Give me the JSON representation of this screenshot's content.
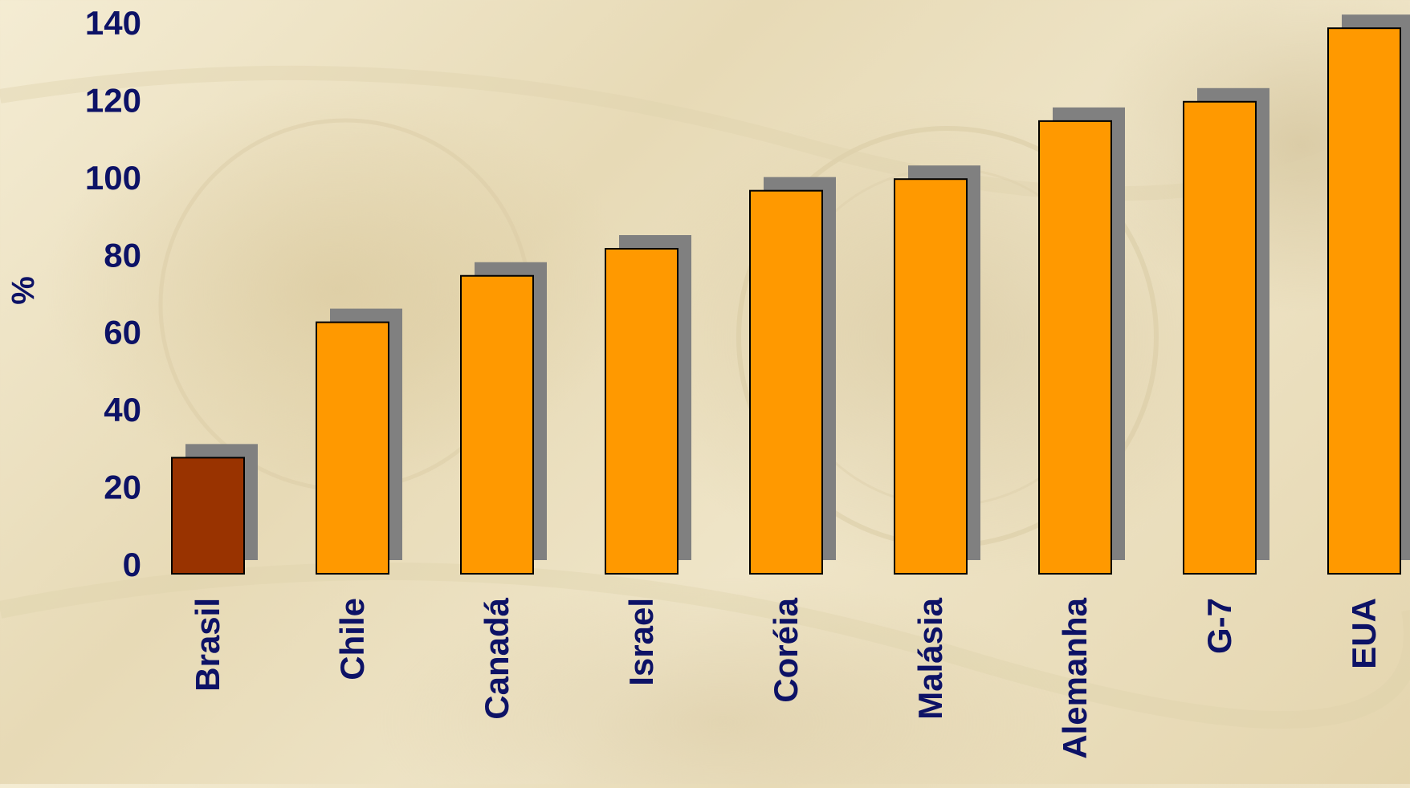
{
  "chart_data": {
    "type": "bar",
    "categories": [
      "Brasil",
      "Chile",
      "Canadá",
      "Israel",
      "Coréia",
      "Malásia",
      "Alemanha",
      "G-7",
      "EUA"
    ],
    "values": [
      30,
      65,
      77,
      84,
      99,
      102,
      117,
      122,
      141
    ],
    "ylabel": "%",
    "xlabel": "",
    "ylim": [
      0,
      140
    ],
    "yticks": [
      0,
      20,
      40,
      60,
      80,
      100,
      120,
      140
    ],
    "grid": false,
    "legend": "none",
    "colors": {
      "highlight_bar": "#993300",
      "bar": "#ff9900",
      "bar_shadow": "#808080",
      "bar_outline": "#000000",
      "text": "#0d1266"
    }
  }
}
